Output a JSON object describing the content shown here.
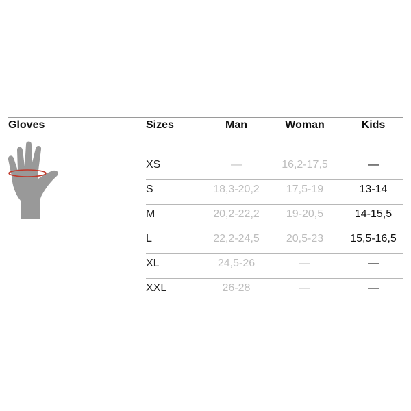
{
  "title": "Gloves",
  "headers": {
    "sizes": "Sizes",
    "man": "Man",
    "woman": "Woman",
    "kids": "Kids"
  },
  "icon": "hand-wrist-measure-icon",
  "colors": {
    "hand": "#999999",
    "measure_ring": "#c0392b",
    "muted_text": "#bdbdbd"
  },
  "rows": [
    {
      "size": "XS",
      "man": "—",
      "woman": "16,2-17,5",
      "kids": "—"
    },
    {
      "size": "S",
      "man": "18,3-20,2",
      "woman": "17,5-19",
      "kids": "13-14"
    },
    {
      "size": "M",
      "man": "20,2-22,2",
      "woman": "19-20,5",
      "kids": "14-15,5"
    },
    {
      "size": "L",
      "man": "22,2-24,5",
      "woman": "20,5-23",
      "kids": "15,5-16,5"
    },
    {
      "size": "XL",
      "man": "24,5-26",
      "woman": "—",
      "kids": "—"
    },
    {
      "size": "XXL",
      "man": "26-28",
      "woman": "—",
      "kids": "—"
    }
  ]
}
